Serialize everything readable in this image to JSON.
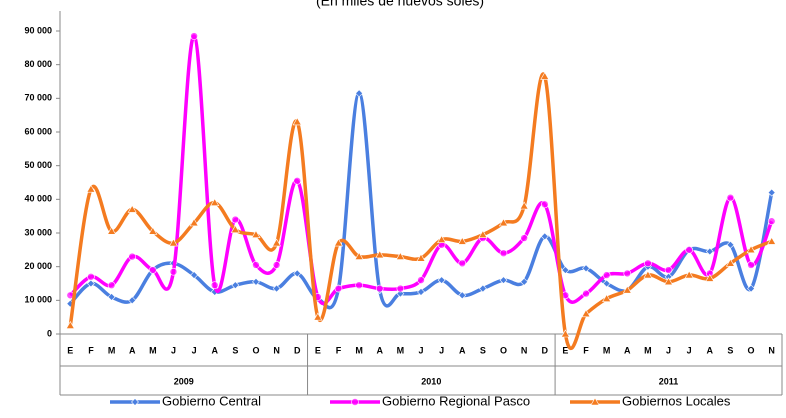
{
  "chart_data": {
    "type": "line",
    "subtitle": "(En miles de nuevos soles)",
    "categories": [
      "E",
      "F",
      "M",
      "A",
      "M",
      "J",
      "J",
      "A",
      "S",
      "O",
      "N",
      "D",
      "E",
      "F",
      "M",
      "A",
      "M",
      "J",
      "J",
      "A",
      "S",
      "O",
      "N",
      "D",
      "E",
      "F",
      "M",
      "A",
      "M",
      "J",
      "J",
      "A",
      "S",
      "O",
      "N"
    ],
    "years": [
      "2009",
      "2010",
      "2011"
    ],
    "series": [
      {
        "name": "Gobierno Central",
        "color": "#4a7fe0",
        "marker": "diamond",
        "values": [
          9000,
          15000,
          11000,
          10000,
          19000,
          21000,
          17500,
          12500,
          14500,
          15500,
          13500,
          18000,
          10500,
          13500,
          71500,
          13000,
          12000,
          12500,
          16000,
          11500,
          13500,
          16000,
          15500,
          29000,
          19000,
          19500,
          15000,
          13000,
          20000,
          17000,
          25000,
          24500,
          26500,
          13500,
          42000
        ]
      },
      {
        "name": "Gobierno Regional Pasco",
        "color": "#ff00ff",
        "marker": "circle",
        "values": [
          11500,
          17000,
          14500,
          23000,
          19000,
          18500,
          88500,
          14500,
          34000,
          20500,
          20500,
          45500,
          11000,
          13500,
          14500,
          13500,
          13500,
          16000,
          26500,
          21000,
          28500,
          24000,
          28500,
          38500,
          11500,
          12000,
          17500,
          18000,
          21000,
          19000,
          25000,
          18000,
          40500,
          20500,
          33500
        ]
      },
      {
        "name": "Gobiernos Locales",
        "color": "#f47b20",
        "marker": "triangle",
        "values": [
          2500,
          43000,
          30500,
          37000,
          30500,
          27000,
          33000,
          39000,
          31000,
          29500,
          27000,
          63000,
          5000,
          27000,
          23000,
          23500,
          23000,
          22500,
          28000,
          27500,
          29500,
          33000,
          38000,
          76500,
          0,
          6000,
          10500,
          13000,
          17500,
          15500,
          17500,
          16500,
          21000,
          25000,
          27500
        ]
      }
    ],
    "ylim": [
      0,
      90000
    ],
    "yticks": [
      0,
      {
        "value": 10000,
        "label": "10 000"
      },
      {
        "value": 20000,
        "label": "20 000"
      },
      {
        "value": 30000,
        "label": "30 000"
      },
      {
        "value": 40000,
        "label": "40 000"
      },
      {
        "value": 50000,
        "label": "50 000"
      },
      {
        "value": 60000,
        "label": "60 000"
      },
      {
        "value": 70000,
        "label": "70 000"
      },
      {
        "value": 80000,
        "label": "80 000"
      },
      {
        "value": 90000,
        "label": "90 000"
      }
    ],
    "legend": "bottom"
  }
}
